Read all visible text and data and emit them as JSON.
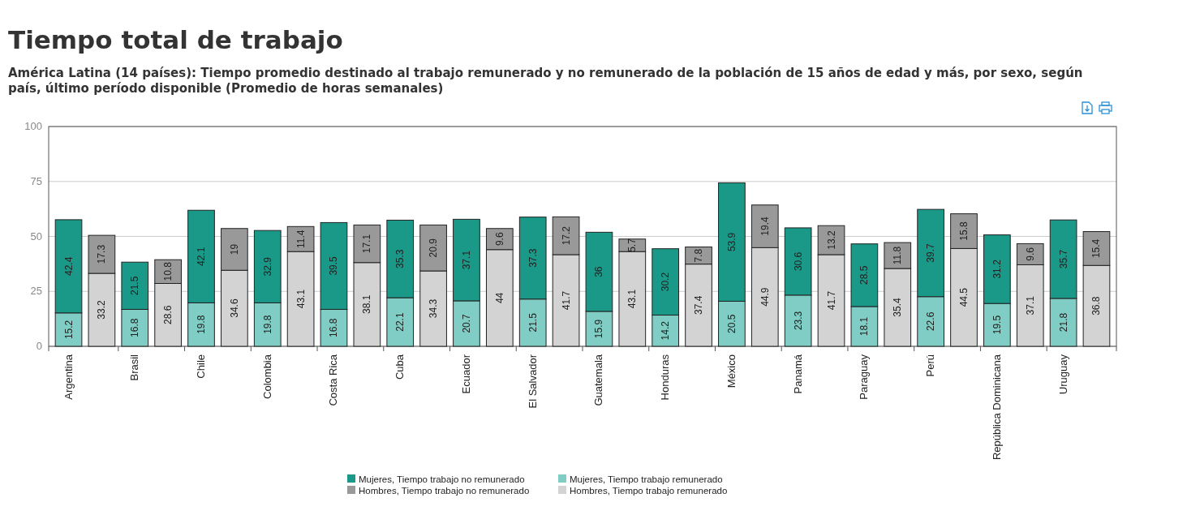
{
  "chart_data": {
    "type": "bar",
    "title": "Tiempo total de trabajo",
    "subtitle": "América Latina (14 países): Tiempo promedio destinado al trabajo remunerado y no remunerado de la población de 15 años de edad y más, por sexo, según país, último período disponible (Promedio de horas semanales)",
    "categories": [
      "Argentina",
      null,
      "Brasil",
      null,
      "Chile",
      null,
      "Colombia",
      null,
      "Costa Rica",
      null,
      "Cuba",
      null,
      "Ecuador",
      null,
      "El Salvador",
      null,
      "Guatemala",
      null,
      "Honduras",
      null,
      "México",
      null,
      "Panamá",
      null,
      "Paraguay",
      null,
      "Perú",
      null,
      "República Dominicana",
      null,
      "Uruguay",
      null
    ],
    "stacked": true,
    "data_labels": true,
    "grid": "y",
    "legend": "bottom",
    "ylim": [
      0,
      100
    ],
    "yticks": [
      0,
      25,
      50,
      75,
      100
    ],
    "series": [
      {
        "name": "Mujeres, Tiempo trabajo remunerado",
        "color": "#7fcdc4",
        "values": [
          15.2,
          null,
          16.8,
          null,
          19.8,
          null,
          19.8,
          null,
          16.8,
          null,
          22.1,
          null,
          20.7,
          null,
          21.5,
          null,
          15.9,
          null,
          14.2,
          null,
          20.5,
          null,
          23.3,
          null,
          18.1,
          null,
          22.6,
          null,
          19.5,
          null,
          21.8,
          null
        ]
      },
      {
        "name": "Mujeres, Tiempo trabajo no remunerado",
        "color": "#1a9988",
        "values": [
          42.4,
          null,
          21.5,
          null,
          42.1,
          null,
          32.9,
          null,
          39.5,
          null,
          35.3,
          null,
          37.1,
          null,
          37.3,
          null,
          36.0,
          null,
          30.2,
          null,
          53.9,
          null,
          30.6,
          null,
          28.5,
          null,
          39.7,
          null,
          31.2,
          null,
          35.7,
          null
        ]
      },
      {
        "name": "Hombres, Tiempo trabajo remunerado",
        "color": "#d3d3d3",
        "values": [
          null,
          33.2,
          null,
          28.6,
          null,
          34.6,
          null,
          43.1,
          null,
          38.1,
          null,
          34.3,
          null,
          44.0,
          null,
          41.7,
          null,
          43.1,
          null,
          37.4,
          null,
          44.9,
          null,
          41.7,
          null,
          35.4,
          null,
          44.5,
          null,
          37.1,
          null,
          36.8
        ]
      },
      {
        "name": "Hombres, Tiempo trabajo no remunerado",
        "color": "#999999",
        "values": [
          null,
          17.3,
          null,
          10.8,
          null,
          19.0,
          null,
          11.4,
          null,
          17.1,
          null,
          20.9,
          null,
          9.6,
          null,
          17.2,
          null,
          5.7,
          null,
          7.8,
          null,
          19.4,
          null,
          13.2,
          null,
          11.8,
          null,
          15.8,
          null,
          9.6,
          null,
          15.4
        ]
      }
    ]
  }
}
